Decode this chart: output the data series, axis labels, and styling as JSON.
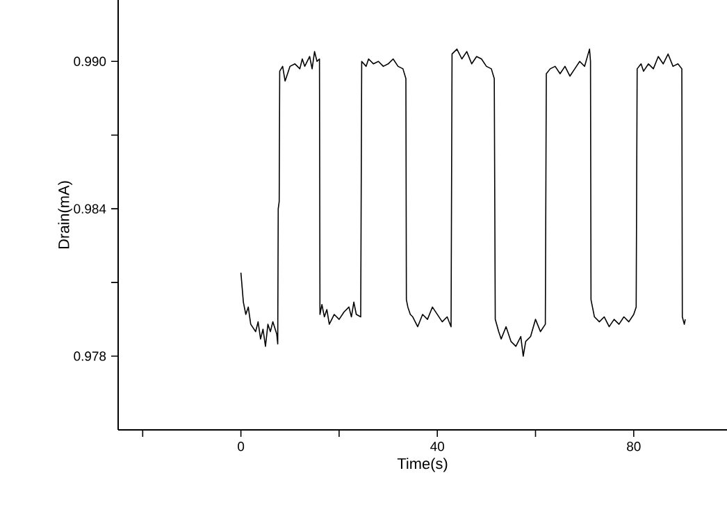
{
  "chart_data": {
    "type": "line",
    "xlabel": "Time(s)",
    "ylabel": "Drain(mA)",
    "xlim": [
      -25,
      99
    ],
    "ylim": [
      0.975,
      0.9925
    ],
    "xticks": [
      {
        "value": -20,
        "label": null
      },
      0,
      {
        "value": 20,
        "label": null
      },
      40,
      {
        "value": 60,
        "label": null
      },
      80
    ],
    "yticks": [
      0.978,
      {
        "value": 0.981,
        "label": null
      },
      0.984,
      {
        "value": 0.987,
        "label": null
      },
      {
        "value": 0.99,
        "label": "0.990"
      }
    ],
    "marker": "none",
    "line_style": "solid",
    "color": "#000000",
    "x": [
      0,
      0.5,
      1,
      1.5,
      2,
      3,
      3.5,
      4,
      4.5,
      5,
      5.5,
      6,
      6.5,
      7.3,
      7.5,
      7.6,
      7.8,
      7.9,
      8.5,
      9,
      9.5,
      10,
      11,
      12,
      12.5,
      13,
      14,
      14.5,
      15,
      15.5,
      16,
      16.1,
      16.5,
      17,
      17.5,
      18,
      19,
      20,
      21,
      22,
      22.5,
      23,
      23.5,
      24.4,
      24.6,
      25.5,
      26,
      27,
      28,
      29,
      30,
      31,
      32,
      33,
      33.6,
      33.7,
      34,
      34.5,
      35,
      36,
      37,
      38,
      39,
      40,
      41,
      42,
      42.8,
      43,
      44,
      45,
      46,
      47,
      48,
      49,
      50,
      51,
      51.6,
      51.8,
      52.5,
      53,
      54,
      55,
      56,
      57,
      57.5,
      58,
      59,
      60,
      61,
      62,
      62.2,
      63,
      64,
      65,
      66,
      67,
      68,
      69,
      70,
      71,
      71.2,
      71.3,
      72,
      73,
      74,
      75,
      76,
      77,
      78,
      79,
      80,
      80.5,
      80.7,
      81.5,
      82,
      83,
      84,
      85,
      86,
      87,
      88,
      89,
      89.8,
      89.9,
      90.3,
      90.5
    ],
    "values": [
      0.9814,
      0.9802,
      0.9797,
      0.98,
      0.9793,
      0.979,
      0.9794,
      0.9787,
      0.9791,
      0.9784,
      0.9793,
      0.979,
      0.9794,
      0.9789,
      0.9785,
      0.984,
      0.9843,
      0.9896,
      0.9898,
      0.9892,
      0.9895,
      0.9898,
      0.9899,
      0.9897,
      0.9901,
      0.9898,
      0.9902,
      0.9897,
      0.9904,
      0.99,
      0.9901,
      0.9797,
      0.9801,
      0.9796,
      0.9799,
      0.9793,
      0.9797,
      0.9795,
      0.9798,
      0.98,
      0.9796,
      0.9802,
      0.9797,
      0.9796,
      0.99,
      0.9898,
      0.9901,
      0.9899,
      0.99,
      0.9898,
      0.9899,
      0.9901,
      0.9898,
      0.9897,
      0.9893,
      0.9803,
      0.98,
      0.9797,
      0.9796,
      0.9792,
      0.9797,
      0.9795,
      0.98,
      0.9797,
      0.9794,
      0.9796,
      0.9792,
      0.9903,
      0.9905,
      0.9901,
      0.9904,
      0.9899,
      0.9902,
      0.9901,
      0.9898,
      0.9897,
      0.9893,
      0.9795,
      0.979,
      0.9787,
      0.9792,
      0.9786,
      0.9784,
      0.9788,
      0.978,
      0.9786,
      0.9788,
      0.9795,
      0.979,
      0.9793,
      0.9895,
      0.9897,
      0.9898,
      0.9895,
      0.9898,
      0.9894,
      0.9897,
      0.99,
      0.9898,
      0.9905,
      0.99,
      0.9803,
      0.9796,
      0.9794,
      0.9796,
      0.9792,
      0.9795,
      0.9793,
      0.9796,
      0.9794,
      0.9797,
      0.98,
      0.9897,
      0.9899,
      0.9896,
      0.9899,
      0.9897,
      0.9902,
      0.9899,
      0.9903,
      0.9898,
      0.9899,
      0.9897,
      0.9796,
      0.9793,
      0.9795
    ]
  }
}
